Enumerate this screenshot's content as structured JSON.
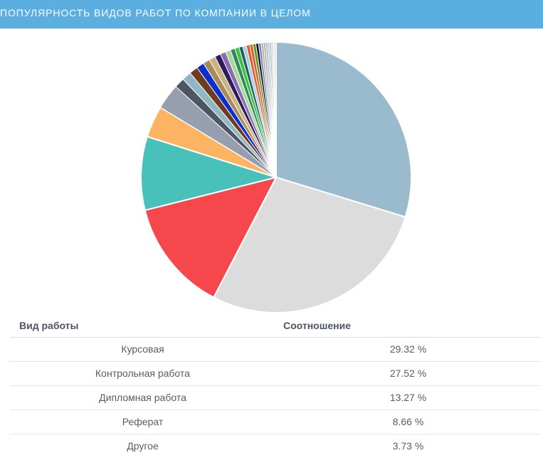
{
  "header": {
    "title": "ПОПУЛЯРНОСТЬ ВИДОВ РАБОТ ПО КОМПАНИИ В ЦЕЛОМ"
  },
  "table": {
    "col_type": "Вид работы",
    "col_ratio": "Соотношение",
    "rows": [
      {
        "type": "Курсовая",
        "ratio": "29.32 %"
      },
      {
        "type": "Контрольная работа",
        "ratio": "27.52 %"
      },
      {
        "type": "Дипломная работа",
        "ratio": "13.27 %"
      },
      {
        "type": "Реферат",
        "ratio": "8.66 %"
      },
      {
        "type": "Другое",
        "ratio": "3.73 %"
      }
    ]
  },
  "chart_data": {
    "type": "pie",
    "slices": [
      {
        "value": 29.32,
        "color": "#99bbcd"
      },
      {
        "value": 27.52,
        "color": "#dcdcdc"
      },
      {
        "value": 13.27,
        "color": "#f6474c"
      },
      {
        "value": 8.66,
        "color": "#48c1bb"
      },
      {
        "value": 3.73,
        "color": "#fdb462"
      },
      {
        "value": 3.0,
        "color": "#969fad"
      },
      {
        "value": 1.2,
        "color": "#4e5563"
      },
      {
        "value": 1.1,
        "color": "#8fb7c4"
      },
      {
        "value": 1.0,
        "color": "#6e3c1e"
      },
      {
        "value": 0.9,
        "color": "#0a2ecf"
      },
      {
        "value": 0.8,
        "color": "#a88b5c"
      },
      {
        "value": 0.75,
        "color": "#cab47e"
      },
      {
        "value": 0.7,
        "color": "#2b1d60"
      },
      {
        "value": 0.65,
        "color": "#8a6ab5"
      },
      {
        "value": 0.6,
        "color": "#a6d896"
      },
      {
        "value": 0.55,
        "color": "#2e8b57"
      },
      {
        "value": 0.5,
        "color": "#3fbf3f"
      },
      {
        "value": 0.45,
        "color": "#1e6464"
      },
      {
        "value": 0.42,
        "color": "#aacce0"
      },
      {
        "value": 0.4,
        "color": "#e5572e"
      },
      {
        "value": 0.37,
        "color": "#c86432"
      },
      {
        "value": 0.35,
        "color": "#6b8e23"
      },
      {
        "value": 0.32,
        "color": "#111111"
      },
      {
        "value": 0.3,
        "color": "#5a8bd0"
      },
      {
        "value": 0.28,
        "color": "#d2a0a0"
      },
      {
        "value": 0.26,
        "color": "#b0b0b0"
      },
      {
        "value": 0.24,
        "color": "#90c0d0"
      },
      {
        "value": 0.22,
        "color": "#c0c0c0"
      },
      {
        "value": 0.2,
        "color": "#a0b0c0"
      },
      {
        "value": 0.2,
        "color": "#d0d0d0"
      },
      {
        "value": 0.18,
        "color": "#e0e0e0"
      },
      {
        "value": 0.18,
        "color": "#c8d8e8"
      }
    ]
  }
}
